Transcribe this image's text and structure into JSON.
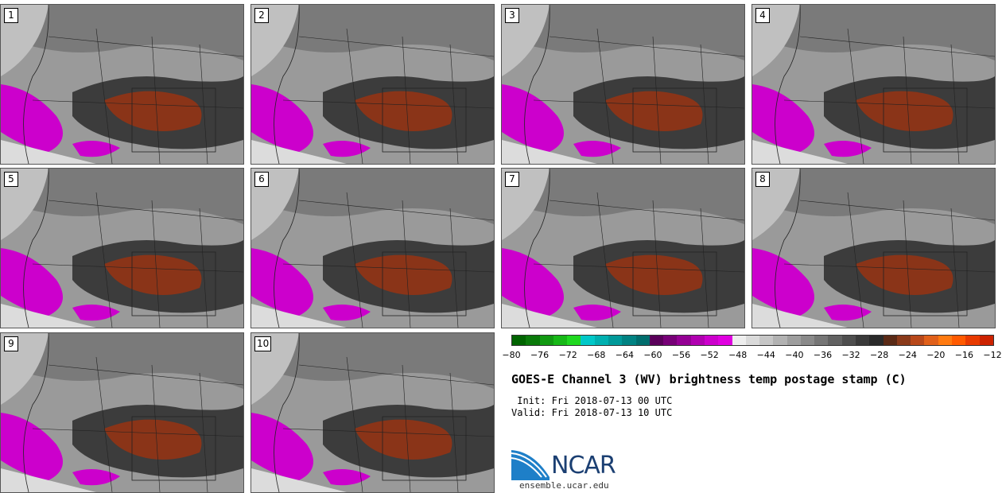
{
  "panels": [
    {
      "label": "1"
    },
    {
      "label": "2"
    },
    {
      "label": "3"
    },
    {
      "label": "4"
    },
    {
      "label": "5"
    },
    {
      "label": "6"
    },
    {
      "label": "7"
    },
    {
      "label": "8"
    },
    {
      "label": "9"
    },
    {
      "label": "10"
    }
  ],
  "colorbar": {
    "ticks": [
      "−80",
      "−76",
      "−72",
      "−68",
      "−64",
      "−60",
      "−56",
      "−52",
      "−48",
      "−44",
      "−40",
      "−36",
      "−32",
      "−28",
      "−24",
      "−20",
      "−16",
      "−12"
    ],
    "colors": [
      "#006400",
      "#0a7a0a",
      "#119911",
      "#17b817",
      "#1fd81f",
      "#00c8c8",
      "#00b0b0",
      "#009999",
      "#008282",
      "#006d6d",
      "#5a005a",
      "#770077",
      "#940094",
      "#b000b0",
      "#cc00cc",
      "#e000e0",
      "#eeeeee",
      "#dadada",
      "#c6c6c6",
      "#b2b2b2",
      "#9e9e9e",
      "#8a8a8a",
      "#767676",
      "#626262",
      "#4e4e4e",
      "#3a3a3a",
      "#2a2a2a",
      "#5a2a16",
      "#8a3a1a",
      "#b8481a",
      "#e0601a",
      "#ff7a10",
      "#ff5a00",
      "#e83a00",
      "#cc2200"
    ]
  },
  "title": "GOES-E Channel 3 (WV) brightness temp postage stamp (C)",
  "init": " Init: Fri 2018-07-13 00 UTC",
  "valid": "Valid: Fri 2018-07-13 10 UTC",
  "logo": {
    "text": "NCAR",
    "site": "ensemble.ucar.edu"
  }
}
